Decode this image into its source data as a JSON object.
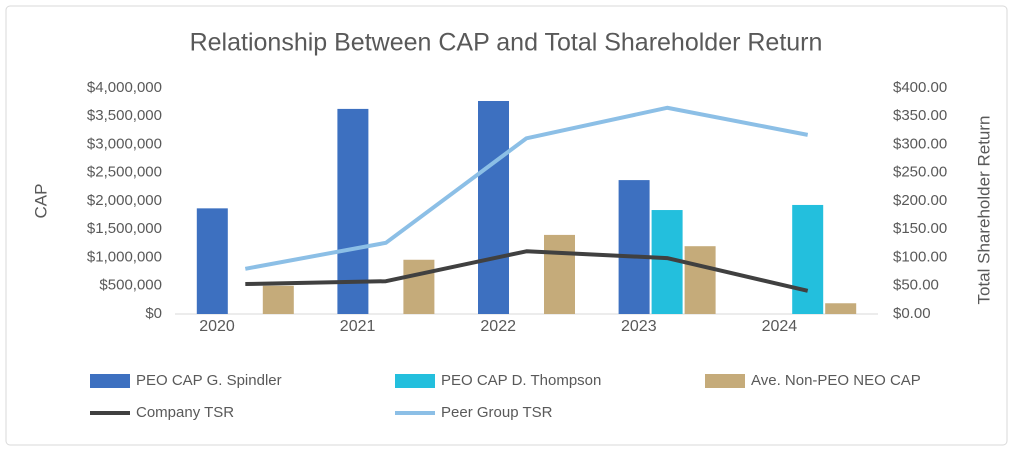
{
  "chart_data": {
    "type": "combo",
    "title": "Relationship Between CAP and Total Shareholder Return",
    "ylabel": "CAP",
    "y2label": "Total Shareholder Return",
    "categories": [
      "2020",
      "2021",
      "2022",
      "2023",
      "2024"
    ],
    "series": [
      {
        "name": "PEO CAP G. Spindler",
        "type": "bar",
        "color": "#3d70c0",
        "values": [
          1870000,
          3630000,
          3770000,
          2370000,
          null
        ]
      },
      {
        "name": "PEO CAP D. Thompson",
        "type": "bar",
        "color": "#23bfdd",
        "values": [
          null,
          null,
          null,
          1840000,
          1930000
        ]
      },
      {
        "name": "Ave. Non-PEO NEO CAP",
        "type": "bar",
        "color": "#c5ab7a",
        "values": [
          500000,
          960000,
          1400000,
          1200000,
          190000
        ]
      },
      {
        "name": "Company TSR",
        "type": "line",
        "axis": "y2",
        "color": "#404040",
        "values": [
          53,
          58,
          111,
          99,
          41
        ]
      },
      {
        "name": "Peer Group TSR",
        "type": "line",
        "axis": "y2",
        "color": "#8cbfe6",
        "values": [
          80,
          126,
          311,
          365,
          317
        ]
      }
    ],
    "ylim": [
      0,
      4000000
    ],
    "yticks": [
      {
        "value": 0,
        "label": "$0"
      },
      {
        "value": 500000,
        "label": "$500,000"
      },
      {
        "value": 1000000,
        "label": "$1,000,000"
      },
      {
        "value": 1500000,
        "label": "$1,500,000"
      },
      {
        "value": 2000000,
        "label": "$2,000,000"
      },
      {
        "value": 2500000,
        "label": "$2,500,000"
      },
      {
        "value": 3000000,
        "label": "$3,000,000"
      },
      {
        "value": 3500000,
        "label": "$3,500,000"
      },
      {
        "value": 4000000,
        "label": "$4,000,000"
      }
    ],
    "y2lim": [
      0,
      400
    ],
    "y2ticks": [
      {
        "value": 0,
        "label": "$0.00"
      },
      {
        "value": 50,
        "label": "$50.00"
      },
      {
        "value": 100,
        "label": "$100.00"
      },
      {
        "value": 150,
        "label": "$150.00"
      },
      {
        "value": 200,
        "label": "$200.00"
      },
      {
        "value": 250,
        "label": "$250.00"
      },
      {
        "value": 300,
        "label": "$300.00"
      },
      {
        "value": 350,
        "label": "$350.00"
      },
      {
        "value": 400,
        "label": "$400.00"
      }
    ],
    "grid": false
  }
}
